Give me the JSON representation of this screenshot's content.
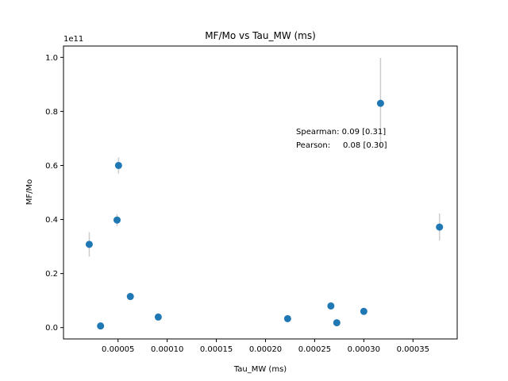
{
  "chart_data": {
    "type": "scatter",
    "title": "MF/Mo vs Tau_MW (ms)",
    "xlabel": "Tau_MW (ms)",
    "ylabel": "MF/Mo",
    "y_scale_label": "1e11",
    "xlim": [
      -5.5e-06,
      0.000395
    ],
    "ylim": [
      -0.042,
      1.042
    ],
    "xticks": [
      5e-05,
      0.0001,
      0.00015,
      0.0002,
      0.00025,
      0.0003,
      0.00035
    ],
    "xtick_labels": [
      "0.00005",
      "0.00010",
      "0.00015",
      "0.00020",
      "0.00025",
      "0.00030",
      "0.00035"
    ],
    "yticks": [
      0.0,
      0.2,
      0.4,
      0.6,
      0.8,
      1.0
    ],
    "ytick_labels": [
      "0.0",
      "0.2",
      "0.4",
      "0.6",
      "0.8",
      "1.0"
    ],
    "grid": false,
    "legend": "none",
    "point_color": "#1f77b4",
    "errorbar_color": "#cccccc",
    "points": [
      {
        "x": 2.07e-05,
        "y": 0.308,
        "err": 0.045
      },
      {
        "x": 3.22e-05,
        "y": 0.006,
        "err": 0.0
      },
      {
        "x": 4.9e-05,
        "y": 0.398,
        "err": 0.022
      },
      {
        "x": 5.05e-05,
        "y": 0.6,
        "err": 0.03
      },
      {
        "x": 6.25e-05,
        "y": 0.115,
        "err": 0.013
      },
      {
        "x": 9.09e-05,
        "y": 0.039,
        "err": 0.0
      },
      {
        "x": 0.0002225,
        "y": 0.033,
        "err": 0.0
      },
      {
        "x": 0.0002665,
        "y": 0.08,
        "err": 0.0
      },
      {
        "x": 0.0002725,
        "y": 0.018,
        "err": 0.0
      },
      {
        "x": 0.0003,
        "y": 0.06,
        "err": 0.013
      },
      {
        "x": 0.000317,
        "y": 0.83,
        "err": 0.168
      },
      {
        "x": 0.000377,
        "y": 0.372,
        "err": 0.05
      }
    ],
    "annotation_lines": [
      "Spearman: 0.09 [0.31]",
      "Pearson:     0.08 [0.30]"
    ]
  }
}
